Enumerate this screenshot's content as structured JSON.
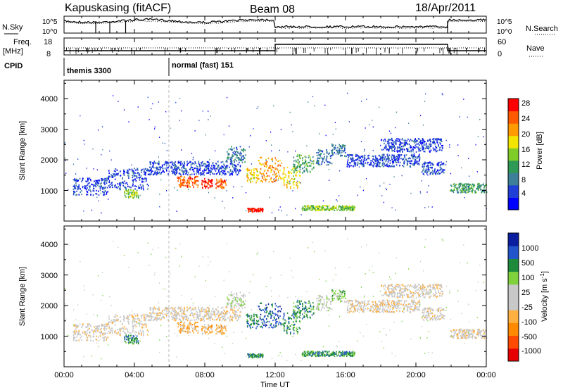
{
  "header": {
    "site": "Kapuskasing (fitACF)",
    "beam": "Beam 08",
    "date": "18/Apr/2011"
  },
  "summary_panels": {
    "nsky_label": "N.Sky",
    "nsearch_label": "N.Search",
    "noise_ticks": [
      "10^5",
      "10^0"
    ],
    "freq_label_1": "Freq.",
    "freq_label_2": "[MHz]",
    "freq_ticks": [
      "18",
      "8"
    ],
    "nave_ticks": [
      "60",
      "0"
    ],
    "nave_label": "Nave",
    "cpid_label": "CPID",
    "cpid_segments": [
      "themis 3300",
      "normal (fast) 151"
    ]
  },
  "colors": {
    "power_scale": [
      "#0000ff",
      "#1f3fd6",
      "#3d7f99",
      "#2e9a55",
      "#7fcc28",
      "#f2e400",
      "#ff9a00",
      "#ff5a00",
      "#ff0000"
    ],
    "velocity_scale": [
      "#0a1ea0",
      "#2255cc",
      "#1e8a3c",
      "#7fd23c",
      "#c8c8c8",
      "#c8c8c8",
      "#ffb040",
      "#ff8a00",
      "#ff4a00",
      "#e60000"
    ]
  },
  "chart_data": [
    {
      "type": "heatmap",
      "quantity": "Power",
      "ylabel": "Slant Range [km]",
      "ylim": [
        0,
        4600
      ],
      "yticks": [
        "1000",
        "2000",
        "3000",
        "4000"
      ],
      "xlim_hours": [
        0,
        24
      ],
      "colorbar_label": "Power [dB]",
      "colorbar_ticks": [
        "4",
        "8",
        "12",
        "16",
        "20",
        "24",
        "28"
      ]
    },
    {
      "type": "heatmap",
      "quantity": "Velocity",
      "ylabel": "Slant Range [km]",
      "ylim": [
        0,
        4600
      ],
      "yticks": [
        "1000",
        "2000",
        "3000",
        "4000"
      ],
      "xlim_hours": [
        0,
        24
      ],
      "xlabel": "Time UT",
      "xticks": [
        "00:00",
        "04:00",
        "08:00",
        "12:00",
        "16:00",
        "20:00",
        "00:00"
      ],
      "colorbar_label": "Velocity [m s",
      "colorbar_label_sup": "-1",
      "colorbar_label_end": "]",
      "colorbar_ticks": [
        "1000",
        "500",
        "100",
        "25",
        "-25",
        "-100",
        "-500",
        "-1000"
      ]
    }
  ]
}
